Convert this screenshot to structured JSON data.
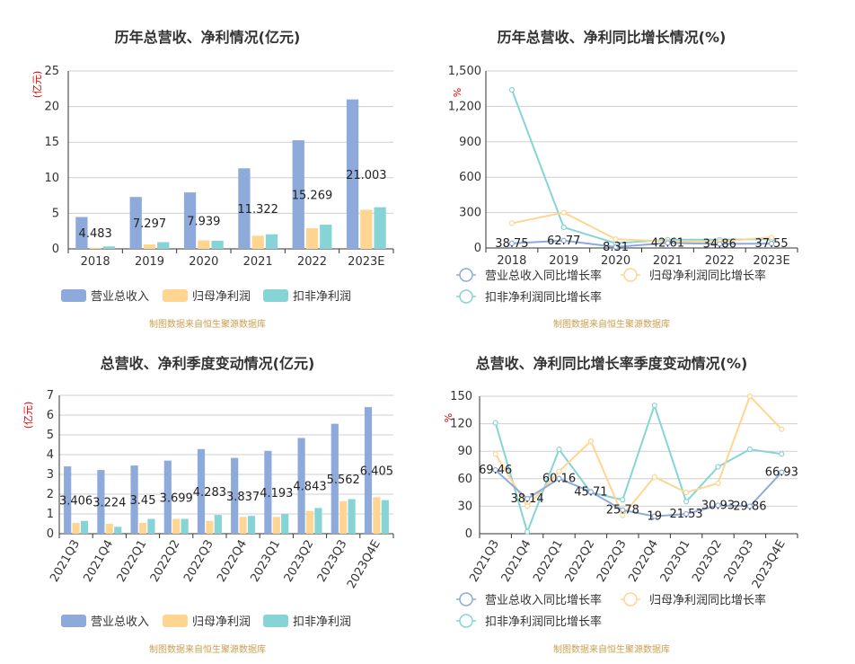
{
  "source_text": "制图数据来自恒生聚源数据库",
  "colors": {
    "revenue": "#8eaadb",
    "net": "#ffd591",
    "net_ex": "#86d4d6",
    "title": "#333333",
    "unit": "#e00000"
  },
  "chart_data": [
    {
      "type": "bar",
      "title": "历年总营收、净利情况(亿元)",
      "ylabel": "(亿元)",
      "ylim": [
        0,
        25
      ],
      "yticks": [
        "0",
        "5",
        "10",
        "15",
        "20",
        "25"
      ],
      "categories": [
        "2018",
        "2019",
        "2020",
        "2021",
        "2022",
        "2023E"
      ],
      "series": [
        {
          "name": "营业总收入",
          "values": [
            4.483,
            7.297,
            7.939,
            11.322,
            15.269,
            21.003
          ]
        },
        {
          "name": "归母净利润",
          "values": [
            0.15,
            0.62,
            1.2,
            1.85,
            2.9,
            5.5
          ]
        },
        {
          "name": "扣非净利润",
          "values": [
            0.35,
            0.95,
            1.15,
            2.05,
            3.4,
            5.85
          ]
        }
      ],
      "data_labels": [
        "4.483",
        "7.297",
        "7.939",
        "11.322",
        "15.269",
        "21.003"
      ],
      "legend": "bottom-left",
      "grid": true
    },
    {
      "type": "line",
      "title": "历年总营收、净利同比增长情况(%)",
      "ylabel": "%",
      "ylim": [
        0,
        1500
      ],
      "yticks": [
        "0",
        "300",
        "600",
        "900",
        "1,200",
        "1,500"
      ],
      "categories": [
        "2018",
        "2019",
        "2020",
        "2021",
        "2022",
        "2023E"
      ],
      "series": [
        {
          "name": "营业总收入同比增长率",
          "values": [
            38.75,
            62.77,
            8.31,
            42.61,
            34.86,
            37.55
          ]
        },
        {
          "name": "归母净利润同比增长率",
          "values": [
            210,
            300,
            75,
            55,
            55,
            90
          ]
        },
        {
          "name": "扣非净利润同比增长率",
          "values": [
            1340,
            175,
            40,
            70,
            70,
            75
          ]
        }
      ],
      "data_labels": [
        "38.75",
        "62.77",
        "8.31",
        "42.61",
        "34.86",
        "37.55"
      ],
      "legend": "bottom-left",
      "grid": true
    },
    {
      "type": "bar",
      "title": "总营收、净利季度变动情况(亿元)",
      "ylabel": "(亿元)",
      "ylim": [
        0,
        7
      ],
      "yticks": [
        "0",
        "1",
        "2",
        "3",
        "4",
        "5",
        "6",
        "7"
      ],
      "categories": [
        "2021Q3",
        "2021Q4",
        "2022Q1",
        "2022Q2",
        "2022Q3",
        "2022Q4",
        "2023Q1",
        "2023Q2",
        "2023Q3",
        "2023Q4E"
      ],
      "series": [
        {
          "name": "营业总收入",
          "values": [
            3.406,
            3.224,
            3.45,
            3.699,
            4.283,
            3.837,
            4.193,
            4.843,
            5.562,
            6.405
          ]
        },
        {
          "name": "归母净利润",
          "values": [
            0.55,
            0.5,
            0.55,
            0.75,
            0.65,
            0.85,
            0.85,
            1.15,
            1.65,
            1.85
          ]
        },
        {
          "name": "扣非净利润",
          "values": [
            0.65,
            0.35,
            0.75,
            0.75,
            0.95,
            0.9,
            1.0,
            1.3,
            1.75,
            1.7
          ]
        }
      ],
      "data_labels": [
        "3.406",
        "3.224",
        "3.45",
        "3.699",
        "4.283",
        "3.837",
        "4.193",
        "4.843",
        "5.562",
        "6.405"
      ],
      "legend": "bottom-left",
      "grid": true
    },
    {
      "type": "line",
      "title": "总营收、净利同比增长率季度变动情况(%)",
      "ylabel": "%",
      "ylim": [
        0,
        150
      ],
      "yticks": [
        "0",
        "30",
        "60",
        "90",
        "120",
        "150"
      ],
      "categories": [
        "2021Q3",
        "2021Q4",
        "2022Q1",
        "2022Q2",
        "2022Q3",
        "2022Q4",
        "2023Q1",
        "2023Q2",
        "2023Q3",
        "2023Q4E"
      ],
      "series": [
        {
          "name": "营业总收入同比增长率",
          "values": [
            69.46,
            38.14,
            60.16,
            45.71,
            25.78,
            19,
            21.53,
            30.93,
            29.86,
            66.93
          ]
        },
        {
          "name": "归母净利润同比增长率",
          "values": [
            87,
            30,
            68,
            101,
            20,
            62,
            45,
            55,
            150,
            114
          ]
        },
        {
          "name": "扣非净利润同比增长率",
          "values": [
            121,
            2,
            92,
            45,
            37,
            140,
            35,
            73,
            92,
            87
          ]
        }
      ],
      "data_labels": [
        "69.46",
        "38.14",
        "60.16",
        "45.71",
        "25.78",
        "19",
        "21.53",
        "30.93",
        "29.86",
        "66.93"
      ],
      "legend": "bottom-left",
      "grid": true
    }
  ]
}
